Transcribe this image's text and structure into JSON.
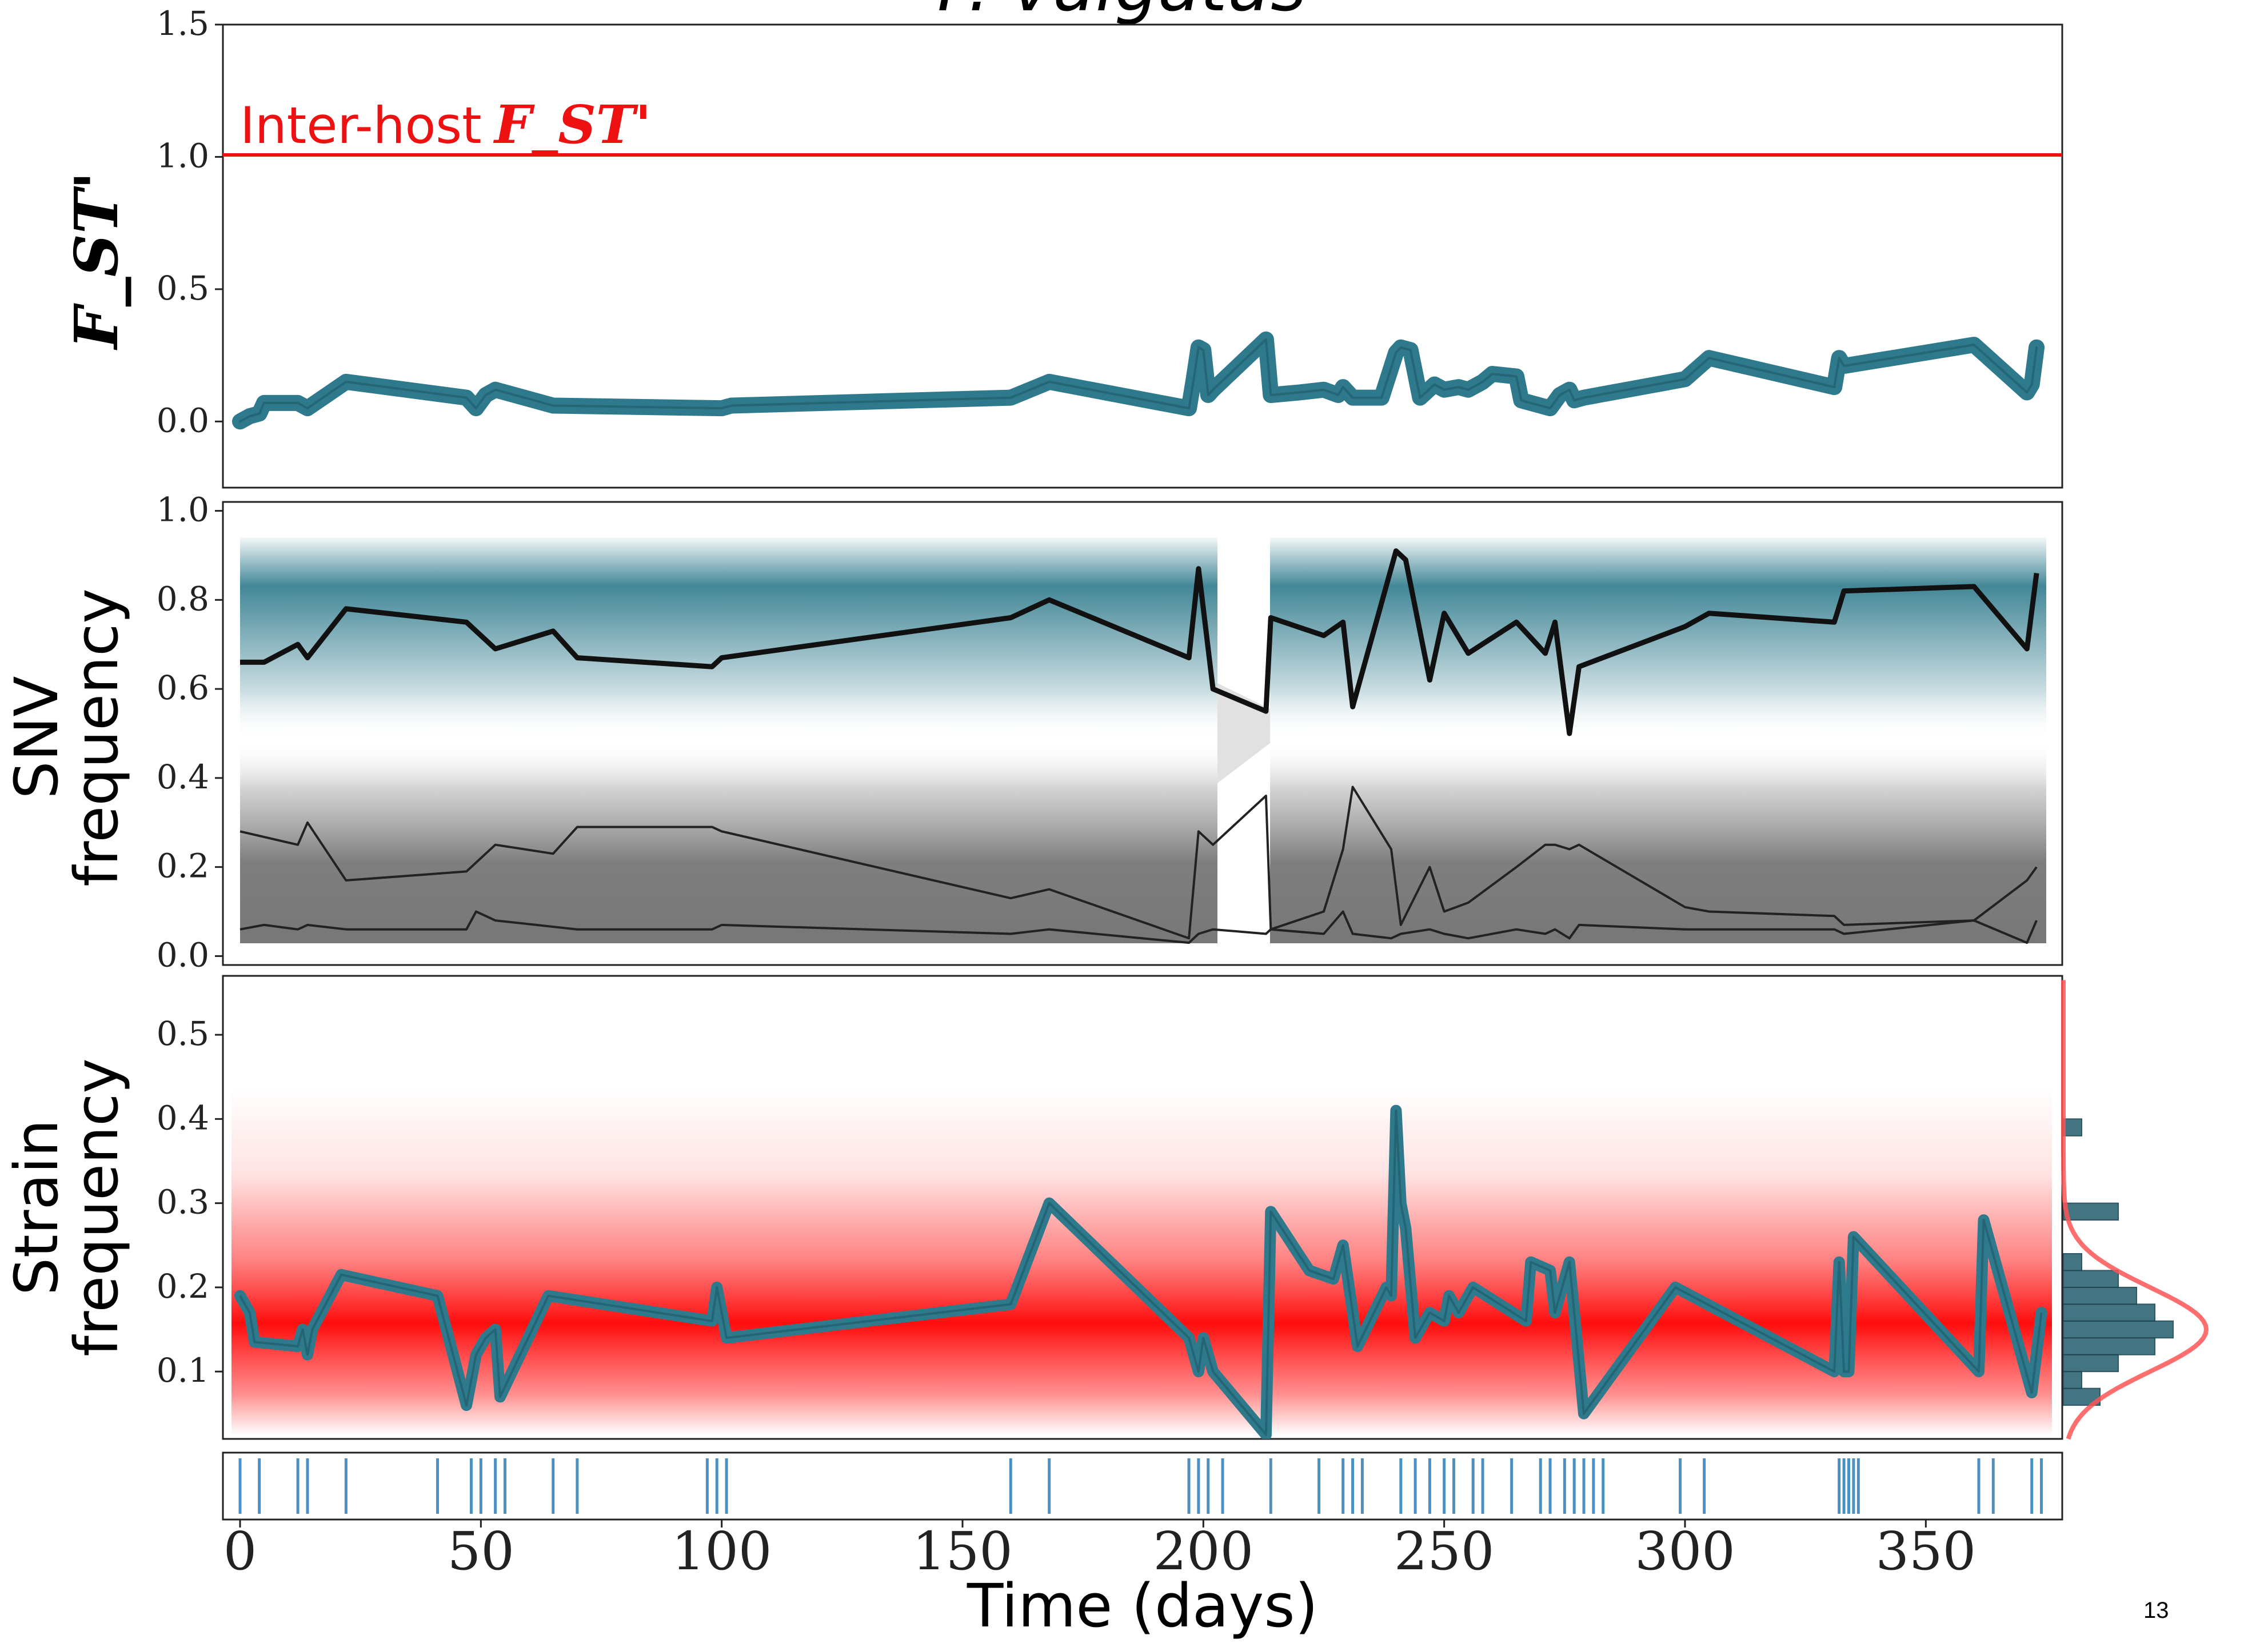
{
  "title_partial": "F. vulgatus",
  "page_number": "13",
  "colors": {
    "teal": "#2e7a8c",
    "red": "#ff1a1a",
    "gray": "#7a7a7a",
    "black": "#111111",
    "tick_blue": "#4a90c2"
  },
  "chart_data": [
    {
      "type": "line",
      "ylabel": "F_ST'",
      "annotation": "Inter-host",
      "annotation_symbol": "F_ST'",
      "reference_line": 1.0,
      "ylim": [
        -0.25,
        1.5
      ],
      "yticks": [
        "0.0",
        "0.5",
        "1.0",
        "1.5"
      ],
      "series": [
        {
          "x": [
            0,
            2,
            4,
            5,
            12,
            14,
            22,
            47,
            49,
            51,
            53,
            65,
            100,
            102,
            160,
            168,
            197,
            198,
            199,
            200,
            201,
            202,
            213,
            214,
            220,
            225,
            228,
            229,
            231,
            237,
            240,
            241,
            243,
            245,
            248,
            250,
            253,
            255,
            258,
            260,
            265,
            266,
            268,
            272,
            274,
            276,
            277,
            279,
            300,
            305,
            331,
            332,
            333,
            360,
            371,
            372,
            373
          ],
          "y": [
            0.0,
            0.02,
            0.03,
            0.07,
            0.07,
            0.05,
            0.15,
            0.09,
            0.05,
            0.1,
            0.12,
            0.06,
            0.05,
            0.06,
            0.09,
            0.15,
            0.05,
            0.16,
            0.28,
            0.27,
            0.1,
            0.12,
            0.31,
            0.1,
            0.11,
            0.12,
            0.1,
            0.13,
            0.09,
            0.09,
            0.26,
            0.28,
            0.27,
            0.09,
            0.14,
            0.12,
            0.13,
            0.12,
            0.15,
            0.18,
            0.17,
            0.08,
            0.07,
            0.05,
            0.1,
            0.12,
            0.08,
            0.09,
            0.16,
            0.24,
            0.13,
            0.24,
            0.21,
            0.29,
            0.11,
            0.14,
            0.28
          ]
        }
      ]
    },
    {
      "type": "line",
      "ylabel": [
        "SNV",
        "frequency"
      ],
      "ylim": [
        -0.02,
        1.02
      ],
      "yticks": [
        "0.0",
        "0.2",
        "0.4",
        "0.6",
        "0.8",
        "1.0"
      ],
      "series": [
        {
          "x": [
            0,
            5,
            12,
            14,
            22,
            47,
            53,
            65,
            70,
            98,
            100,
            160,
            168,
            197,
            199,
            202,
            213,
            214,
            225,
            229,
            231,
            240,
            242,
            247,
            250,
            255,
            265,
            271,
            273,
            276,
            278,
            300,
            305,
            331,
            333,
            360,
            371,
            373
          ],
          "y": [
            0.66,
            0.66,
            0.7,
            0.67,
            0.78,
            0.75,
            0.69,
            0.73,
            0.67,
            0.65,
            0.67,
            0.76,
            0.8,
            0.67,
            0.87,
            0.6,
            0.55,
            0.76,
            0.72,
            0.75,
            0.56,
            0.91,
            0.89,
            0.62,
            0.77,
            0.68,
            0.75,
            0.68,
            0.75,
            0.5,
            0.65,
            0.74,
            0.77,
            0.75,
            0.82,
            0.83,
            0.69,
            0.86
          ]
        },
        {
          "x": [
            0,
            12,
            14,
            22,
            47,
            53,
            65,
            70,
            98,
            100,
            160,
            168,
            197,
            199,
            202,
            213,
            214,
            225,
            229,
            231,
            239,
            241,
            247,
            250,
            255,
            265,
            271,
            273,
            276,
            278,
            300,
            305,
            331,
            333,
            360,
            371,
            373
          ],
          "y": [
            0.28,
            0.25,
            0.3,
            0.17,
            0.19,
            0.25,
            0.23,
            0.29,
            0.29,
            0.28,
            0.13,
            0.15,
            0.04,
            0.28,
            0.25,
            0.36,
            0.06,
            0.1,
            0.24,
            0.38,
            0.24,
            0.07,
            0.2,
            0.1,
            0.12,
            0.2,
            0.25,
            0.25,
            0.24,
            0.25,
            0.11,
            0.1,
            0.09,
            0.07,
            0.08,
            0.17,
            0.2
          ]
        },
        {
          "x": [
            0,
            5,
            12,
            14,
            22,
            47,
            49,
            53,
            70,
            98,
            100,
            160,
            168,
            197,
            199,
            202,
            213,
            214,
            225,
            229,
            231,
            239,
            241,
            247,
            250,
            255,
            265,
            271,
            273,
            276,
            278,
            300,
            331,
            333,
            360,
            371,
            373
          ],
          "y": [
            0.06,
            0.07,
            0.06,
            0.07,
            0.06,
            0.06,
            0.1,
            0.08,
            0.06,
            0.06,
            0.07,
            0.05,
            0.06,
            0.03,
            0.05,
            0.06,
            0.05,
            0.06,
            0.05,
            0.1,
            0.05,
            0.04,
            0.05,
            0.06,
            0.05,
            0.04,
            0.06,
            0.05,
            0.06,
            0.04,
            0.07,
            0.06,
            0.06,
            0.05,
            0.08,
            0.03,
            0.08
          ]
        }
      ]
    },
    {
      "type": "line",
      "ylabel": [
        "Strain",
        "frequency"
      ],
      "ylim": [
        0.02,
        0.57
      ],
      "yticks": [
        "0.1",
        "0.2",
        "0.3",
        "0.4",
        "0.5"
      ],
      "series": [
        {
          "x": [
            0,
            2,
            3,
            12,
            13,
            14,
            15,
            21,
            41,
            47,
            49,
            51,
            53,
            54,
            64,
            98,
            99,
            101,
            160,
            168,
            197,
            199,
            200,
            202,
            213,
            214,
            222,
            227,
            229,
            231,
            232,
            238,
            239,
            240,
            241,
            242,
            244,
            247,
            250,
            251,
            253,
            256,
            267,
            268,
            272,
            273,
            276,
            279,
            298,
            331,
            332,
            333,
            334,
            335,
            361,
            362,
            372,
            374
          ],
          "y": [
            0.19,
            0.17,
            0.135,
            0.13,
            0.15,
            0.12,
            0.15,
            0.215,
            0.19,
            0.06,
            0.12,
            0.14,
            0.15,
            0.07,
            0.19,
            0.16,
            0.2,
            0.14,
            0.18,
            0.3,
            0.14,
            0.1,
            0.14,
            0.1,
            0.025,
            0.29,
            0.22,
            0.21,
            0.25,
            0.17,
            0.13,
            0.2,
            0.19,
            0.41,
            0.3,
            0.27,
            0.14,
            0.17,
            0.16,
            0.19,
            0.17,
            0.2,
            0.16,
            0.23,
            0.22,
            0.17,
            0.23,
            0.05,
            0.2,
            0.1,
            0.23,
            0.1,
            0.1,
            0.26,
            0.1,
            0.28,
            0.075,
            0.17
          ]
        }
      ],
      "histogram": {
        "bins": [
          0.06,
          0.08,
          0.1,
          0.12,
          0.14,
          0.16,
          0.18,
          0.2,
          0.22,
          0.24,
          0.26,
          0.28,
          0.3,
          0.32,
          0.34,
          0.36,
          0.38,
          0.4
        ],
        "counts": [
          2,
          1,
          3,
          5,
          6,
          5,
          4,
          3,
          1,
          0,
          0,
          3,
          0,
          0,
          0,
          0,
          1
        ]
      },
      "xlabel": "Time (days)",
      "xlim": [
        -3,
        379
      ],
      "xticks": [
        "0",
        "50",
        "100",
        "150",
        "200",
        "250",
        "300",
        "350"
      ]
    }
  ],
  "sampling_days": [
    0,
    4,
    12,
    14,
    22,
    41,
    48,
    50,
    53,
    55,
    65,
    70,
    97,
    99,
    101,
    160,
    168,
    197,
    199,
    201,
    204,
    214,
    224,
    229,
    231,
    233,
    241,
    244,
    247,
    250,
    252,
    256,
    258,
    264,
    270,
    272,
    275,
    277,
    279,
    281,
    283,
    299,
    304,
    332,
    333,
    334,
    335,
    336,
    361,
    364,
    372,
    374
  ]
}
